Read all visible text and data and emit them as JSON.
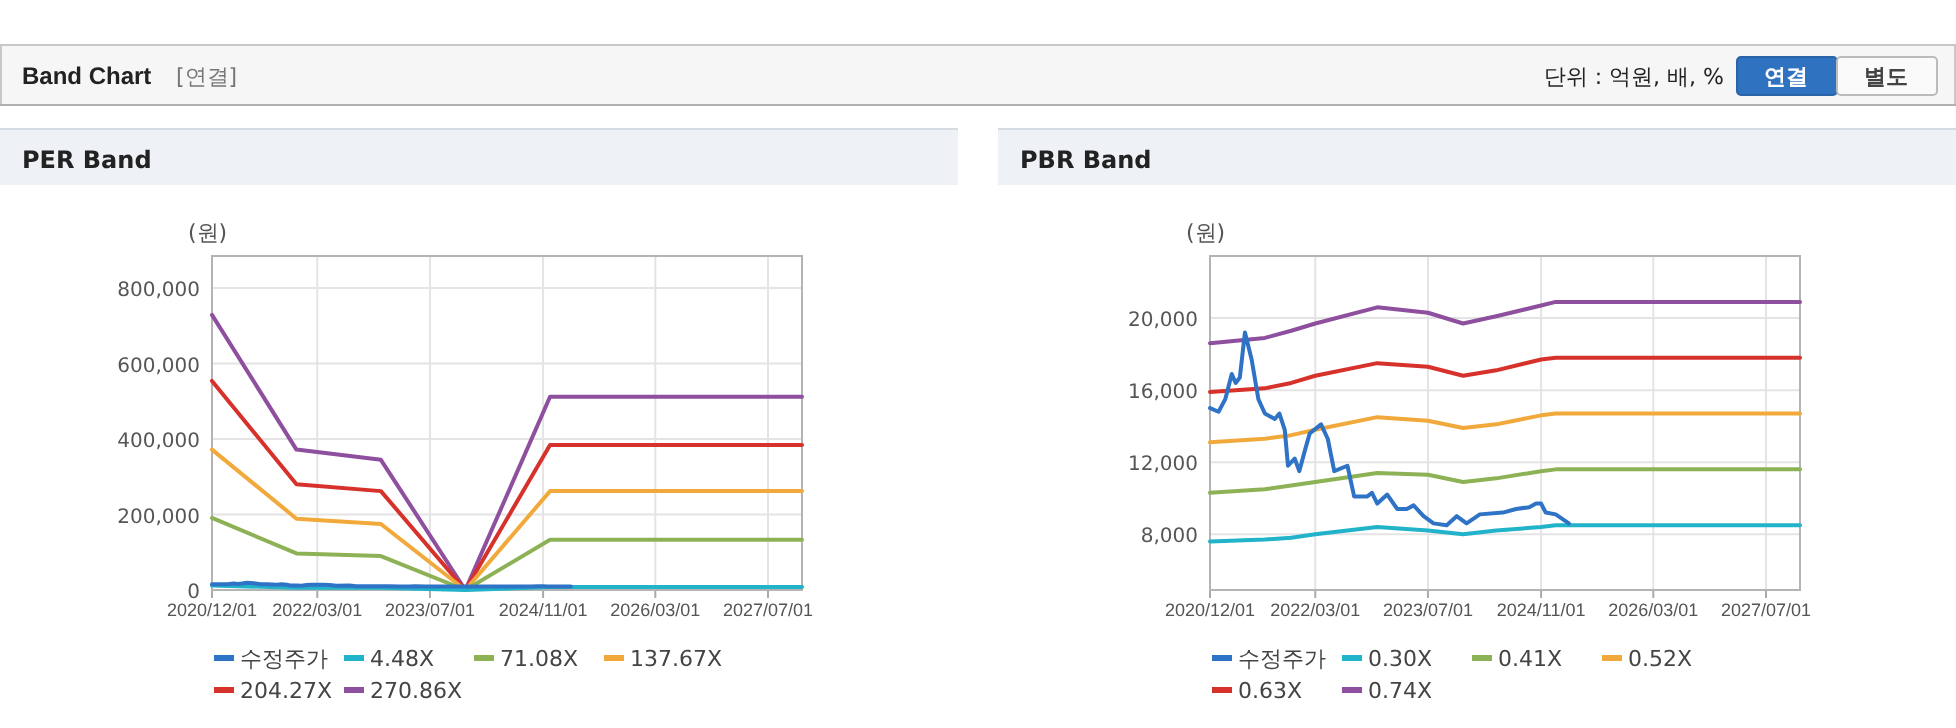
{
  "chart_data": [
    {
      "type": "other",
      "title": "Band Chart",
      "subtitle": "[연결]",
      "annotations": [
        "단위 : 억원, 배, %",
        "연결",
        "별도"
      ]
    },
    {
      "type": "line",
      "title": "PER Band",
      "ylabel": "(원)",
      "xlim": [
        "2020-12-01",
        "2027-11-25"
      ],
      "ylim": [
        0,
        885000
      ],
      "xticks": [
        {
          "value": "2020-12-01",
          "label": "2020/12/01"
        },
        {
          "value": "2022-03-01",
          "label": "2022/03/01"
        },
        {
          "value": "2023-07-01",
          "label": "2023/07/01"
        },
        {
          "value": "2024-11-01",
          "label": "2024/11/01"
        },
        {
          "value": "2026-03-01",
          "label": "2026/03/01"
        },
        {
          "value": "2027-07-01",
          "label": "2027/07/01"
        }
      ],
      "yticks": [
        0,
        {
          "value": 200000,
          "label": "200,000"
        },
        {
          "value": 400000,
          "label": "400,000"
        },
        {
          "value": 600000,
          "label": "600,000"
        },
        {
          "value": 800000,
          "label": "800,000"
        }
      ],
      "grid": true,
      "legend": "bottom",
      "line_style": "solid",
      "series": [
        {
          "name": "수정주가",
          "color": "#2f73c6",
          "x": [
            "2020-12-01",
            "2021-01-07",
            "2021-02-05",
            "2021-03-05",
            "2021-03-22",
            "2021-04-09",
            "2021-05-01",
            "2021-05-30",
            "2021-06-28",
            "2021-07-26",
            "2021-09-07",
            "2021-09-27",
            "2021-10-20",
            "2021-11-03",
            "2021-12-02",
            "2021-12-22",
            "2022-01-14",
            "2022-02-05",
            "2022-03-26",
            "2022-04-24",
            "2022-05-22",
            "2022-07-18",
            "2022-08-16",
            "2022-10-12",
            "2022-11-01",
            "2022-11-24",
            "2023-01-06",
            "2023-02-18",
            "2023-04-01",
            "2023-04-30",
            "2023-06-12",
            "2023-07-25",
            "2023-09-20",
            "2023-11-02",
            "2023-12-15",
            "2024-02-10",
            "2024-05-20",
            "2024-07-16",
            "2024-09-11",
            "2024-10-10",
            "2024-11-01",
            "2024-11-21",
            "2025-01-03",
            "2025-03-01"
          ],
          "values": [
            15000,
            15000,
            15000,
            17000,
            16000,
            17000,
            19000,
            18000,
            15000,
            15000,
            14000,
            15000,
            14000,
            12000,
            12000,
            11000,
            13000,
            14000,
            14000,
            13000,
            11000,
            12000,
            10000,
            10000,
            10000,
            10000,
            10000,
            9000,
            9000,
            10000,
            9000,
            9000,
            9000,
            9000,
            9000,
            9000,
            9000,
            9000,
            9000,
            10000,
            10000,
            9000,
            9000,
            9000
          ]
        },
        {
          "name": "4.48X",
          "color": "#21b3c9",
          "x": [
            "2020-12-01",
            "2021-12-01",
            "2022-12-01",
            "2023-12-01",
            "2024-12-01",
            "2027-11-25"
          ],
          "values": [
            12000,
            6000,
            6000,
            0,
            8000,
            8000
          ]
        },
        {
          "name": "71.08X",
          "color": "#8db255",
          "x": [
            "2020-12-01",
            "2021-12-01",
            "2022-12-01",
            "2023-12-01",
            "2024-12-01",
            "2027-11-25"
          ],
          "values": [
            191000,
            97000,
            90000,
            0,
            133000,
            133000
          ]
        },
        {
          "name": "137.67X",
          "color": "#f2a93b",
          "x": [
            "2020-12-01",
            "2021-12-01",
            "2022-12-01",
            "2023-12-01",
            "2024-12-01",
            "2027-11-25"
          ],
          "values": [
            372000,
            189000,
            175000,
            0,
            262000,
            262000
          ]
        },
        {
          "name": "204.27X",
          "color": "#d6322b",
          "x": [
            "2020-12-01",
            "2021-12-01",
            "2022-12-01",
            "2023-12-01",
            "2024-12-01",
            "2027-11-25"
          ],
          "values": [
            554000,
            280000,
            262000,
            0,
            384000,
            384000
          ]
        },
        {
          "name": "270.86X",
          "color": "#8e4f9e",
          "x": [
            "2020-12-01",
            "2021-12-01",
            "2022-12-01",
            "2023-12-01",
            "2024-12-01",
            "2027-11-25"
          ],
          "values": [
            729000,
            372000,
            345000,
            0,
            512000,
            512000
          ]
        }
      ]
    },
    {
      "type": "line",
      "title": "PBR Band",
      "ylabel": "(원)",
      "xlim": [
        "2020-12-01",
        "2027-11-25"
      ],
      "ylim": [
        4900,
        23450
      ],
      "xticks": [
        {
          "value": "2020-12-01",
          "label": "2020/12/01"
        },
        {
          "value": "2022-03-01",
          "label": "2022/03/01"
        },
        {
          "value": "2023-07-01",
          "label": "2023/07/01"
        },
        {
          "value": "2024-11-01",
          "label": "2024/11/01"
        },
        {
          "value": "2026-03-01",
          "label": "2026/03/01"
        },
        {
          "value": "2027-07-01",
          "label": "2027/07/01"
        }
      ],
      "yticks": [
        {
          "value": 8000,
          "label": "8,000"
        },
        {
          "value": 12000,
          "label": "12,000"
        },
        {
          "value": 16000,
          "label": "16,000"
        },
        {
          "value": 20000,
          "label": "20,000"
        }
      ],
      "grid": true,
      "legend": "bottom",
      "line_style": "solid",
      "series": [
        {
          "name": "수정주가",
          "color": "#2f73c6",
          "x": [
            "2020-12-01",
            "2021-01-07",
            "2021-02-05",
            "2021-03-05",
            "2021-03-22",
            "2021-04-09",
            "2021-05-01",
            "2021-05-30",
            "2021-06-28",
            "2021-07-26",
            "2021-09-07",
            "2021-09-27",
            "2021-10-20",
            "2021-11-03",
            "2021-12-02",
            "2021-12-22",
            "2022-01-14",
            "2022-02-05",
            "2022-03-26",
            "2022-04-24",
            "2022-05-22",
            "2022-07-18",
            "2022-08-16",
            "2022-10-12",
            "2022-11-01",
            "2022-11-24",
            "2023-01-06",
            "2023-02-18",
            "2023-04-01",
            "2023-04-30",
            "2023-06-12",
            "2023-07-25",
            "2023-09-20",
            "2023-11-02",
            "2023-12-15",
            "2024-02-10",
            "2024-05-20",
            "2024-07-16",
            "2024-09-11",
            "2024-10-10",
            "2024-11-01",
            "2024-11-21",
            "2025-01-03",
            "2025-03-01"
          ],
          "values": [
            15000,
            14800,
            15500,
            16900,
            16400,
            16700,
            19200,
            17700,
            15500,
            14700,
            14400,
            14700,
            13800,
            11800,
            12200,
            11500,
            12600,
            13600,
            14100,
            13300,
            11500,
            11800,
            10100,
            10100,
            10300,
            9700,
            10200,
            9400,
            9400,
            9600,
            9000,
            8600,
            8500,
            9000,
            8600,
            9100,
            9200,
            9400,
            9500,
            9700,
            9700,
            9200,
            9100,
            8600
          ]
        },
        {
          "name": "0.30X",
          "color": "#21b3c9",
          "x": [
            "2020-12-01",
            "2021-07-26",
            "2021-11-17",
            "2022-03-01",
            "2022-11-24",
            "2023-07-01",
            "2023-11-30",
            "2024-04-21",
            "2024-11-01",
            "2025-01-03",
            "2027-11-25"
          ],
          "values": [
            7600,
            7700,
            7800,
            8000,
            8400,
            8200,
            8000,
            8200,
            8400,
            8500,
            8500
          ]
        },
        {
          "name": "0.41X",
          "color": "#8db255",
          "x": [
            "2020-12-01",
            "2021-07-26",
            "2021-11-17",
            "2022-03-01",
            "2022-11-24",
            "2023-07-01",
            "2023-11-30",
            "2024-04-21",
            "2024-11-01",
            "2025-01-03",
            "2027-11-25"
          ],
          "values": [
            10300,
            10500,
            10700,
            10900,
            11400,
            11300,
            10900,
            11100,
            11500,
            11600,
            11600
          ]
        },
        {
          "name": "0.52X",
          "color": "#f2a93b",
          "x": [
            "2020-12-01",
            "2021-07-26",
            "2021-11-17",
            "2022-03-01",
            "2022-11-24",
            "2023-07-01",
            "2023-11-30",
            "2024-04-21",
            "2024-11-01",
            "2025-01-03",
            "2027-11-25"
          ],
          "values": [
            13100,
            13300,
            13500,
            13800,
            14500,
            14300,
            13900,
            14100,
            14600,
            14700,
            14700
          ]
        },
        {
          "name": "0.63X",
          "color": "#d6322b",
          "x": [
            "2020-12-01",
            "2021-07-26",
            "2021-11-17",
            "2022-03-01",
            "2022-11-24",
            "2023-07-01",
            "2023-11-30",
            "2024-04-21",
            "2024-11-01",
            "2025-01-03",
            "2027-11-25"
          ],
          "values": [
            15900,
            16100,
            16400,
            16800,
            17500,
            17300,
            16800,
            17100,
            17700,
            17800,
            17800
          ]
        },
        {
          "name": "0.74X",
          "color": "#8e4f9e",
          "x": [
            "2020-12-01",
            "2021-07-26",
            "2021-11-17",
            "2022-03-01",
            "2022-11-24",
            "2023-07-01",
            "2023-11-30",
            "2024-04-21",
            "2024-11-01",
            "2025-01-03",
            "2027-11-25"
          ],
          "values": [
            18600,
            18900,
            19300,
            19700,
            20600,
            20300,
            19700,
            20100,
            20700,
            20900,
            20900
          ]
        }
      ]
    }
  ]
}
